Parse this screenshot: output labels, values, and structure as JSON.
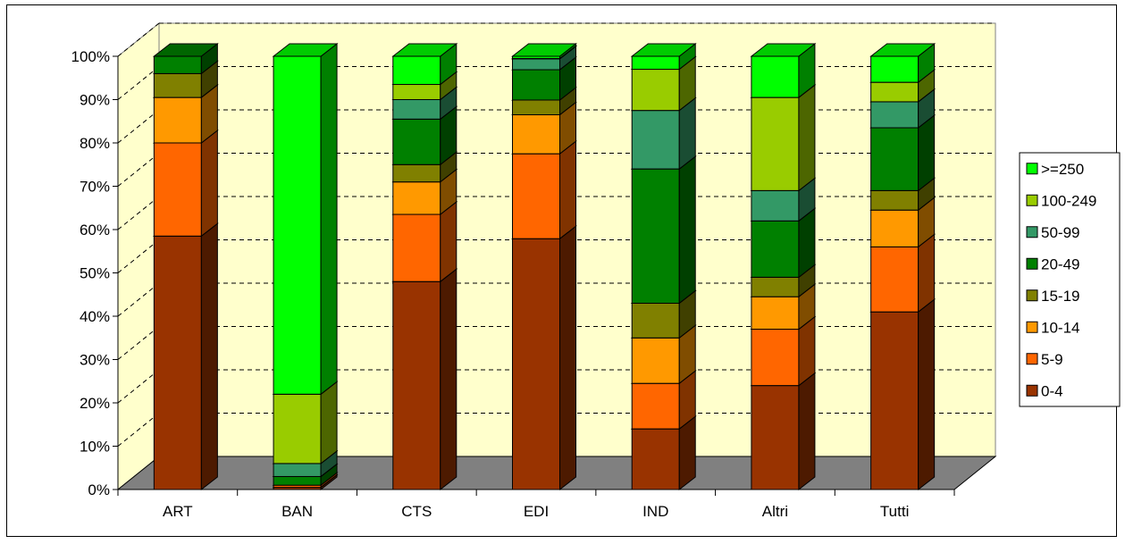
{
  "chart_data": {
    "type": "bar",
    "stacked": true,
    "percent": true,
    "three_d": true,
    "categories": [
      "ART",
      "BAN",
      "CTS",
      "EDI",
      "IND",
      "Altri",
      "Tutti"
    ],
    "series": [
      {
        "name": "0-4",
        "color": "#993300",
        "values": [
          58.5,
          0.5,
          48,
          57.9,
          14,
          24,
          41
        ]
      },
      {
        "name": "5-9",
        "color": "#FF6600",
        "values": [
          21.5,
          0.5,
          15.5,
          19.6,
          10.5,
          13,
          15
        ]
      },
      {
        "name": "10-14",
        "color": "#FF9900",
        "values": [
          10.5,
          0,
          7.5,
          9,
          10.5,
          7.5,
          8.5
        ]
      },
      {
        "name": "15-19",
        "color": "#808000",
        "values": [
          5.5,
          0,
          4,
          3.4,
          8,
          4.5,
          4.5
        ]
      },
      {
        "name": "20-49",
        "color": "#008000",
        "values": [
          4,
          2,
          10.5,
          7,
          31,
          13,
          14.5
        ]
      },
      {
        "name": "50-99",
        "color": "#339966",
        "values": [
          0,
          3,
          4.5,
          2.5,
          13.5,
          7,
          6
        ]
      },
      {
        "name": "100-249",
        "color": "#99CC00",
        "values": [
          0,
          16,
          3.5,
          0.1,
          9.5,
          21.5,
          4.5
        ]
      },
      {
        "name": ">=250",
        "color": "#00FF00",
        "values": [
          0,
          78,
          6.5,
          0.5,
          3,
          9.5,
          6
        ]
      }
    ],
    "y_ticks": [
      "0%",
      "10%",
      "20%",
      "30%",
      "40%",
      "50%",
      "60%",
      "70%",
      "80%",
      "90%",
      "100%"
    ],
    "ylim": [
      0,
      100
    ],
    "grid": true,
    "legend_position": "right",
    "colors": {
      "wall": "#FFFFCC",
      "floor": "#808080",
      "gridline": "#000000"
    }
  }
}
